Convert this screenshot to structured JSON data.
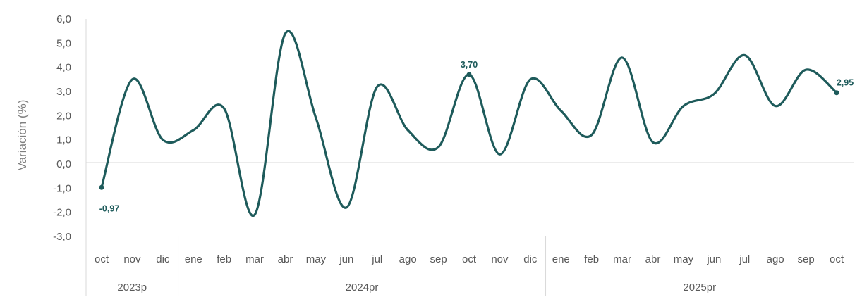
{
  "chart_data": {
    "type": "line",
    "ylabel": "Variación (%)",
    "ylim": [
      -3.0,
      6.0
    ],
    "yticks": [
      "6,0",
      "5,0",
      "4,0",
      "3,0",
      "2,0",
      "1,0",
      "0,0",
      "-1,0",
      "-2,0",
      "-3,0"
    ],
    "ytick_values": [
      6,
      5,
      4,
      3,
      2,
      1,
      0,
      -1,
      -2,
      -3
    ],
    "categories": [
      "oct",
      "nov",
      "dic",
      "ene",
      "feb",
      "mar",
      "abr",
      "may",
      "jun",
      "jul",
      "ago",
      "sep",
      "oct",
      "nov",
      "dic",
      "ene",
      "feb",
      "mar",
      "abr",
      "may",
      "jun",
      "jul",
      "ago",
      "sep",
      "oct"
    ],
    "groups": [
      {
        "label": "2023p",
        "count": 3
      },
      {
        "label": "2024pr",
        "count": 12
      },
      {
        "label": "2025pr",
        "count": 10
      }
    ],
    "series": [
      {
        "values": [
          -0.97,
          3.5,
          1.0,
          1.4,
          2.3,
          -2.1,
          5.4,
          1.9,
          -1.8,
          3.2,
          1.4,
          0.7,
          3.7,
          0.4,
          3.5,
          2.2,
          1.2,
          4.4,
          0.9,
          2.4,
          2.9,
          4.5,
          2.4,
          3.9,
          2.95
        ],
        "color": "#1e5b5b"
      }
    ],
    "data_labels": [
      {
        "index": 0,
        "text": "-0,97",
        "position": "below"
      },
      {
        "index": 12,
        "text": "3,70",
        "position": "above"
      },
      {
        "index": 24,
        "text": "2,95",
        "position": "above"
      }
    ],
    "grid": false,
    "legend": "none"
  }
}
